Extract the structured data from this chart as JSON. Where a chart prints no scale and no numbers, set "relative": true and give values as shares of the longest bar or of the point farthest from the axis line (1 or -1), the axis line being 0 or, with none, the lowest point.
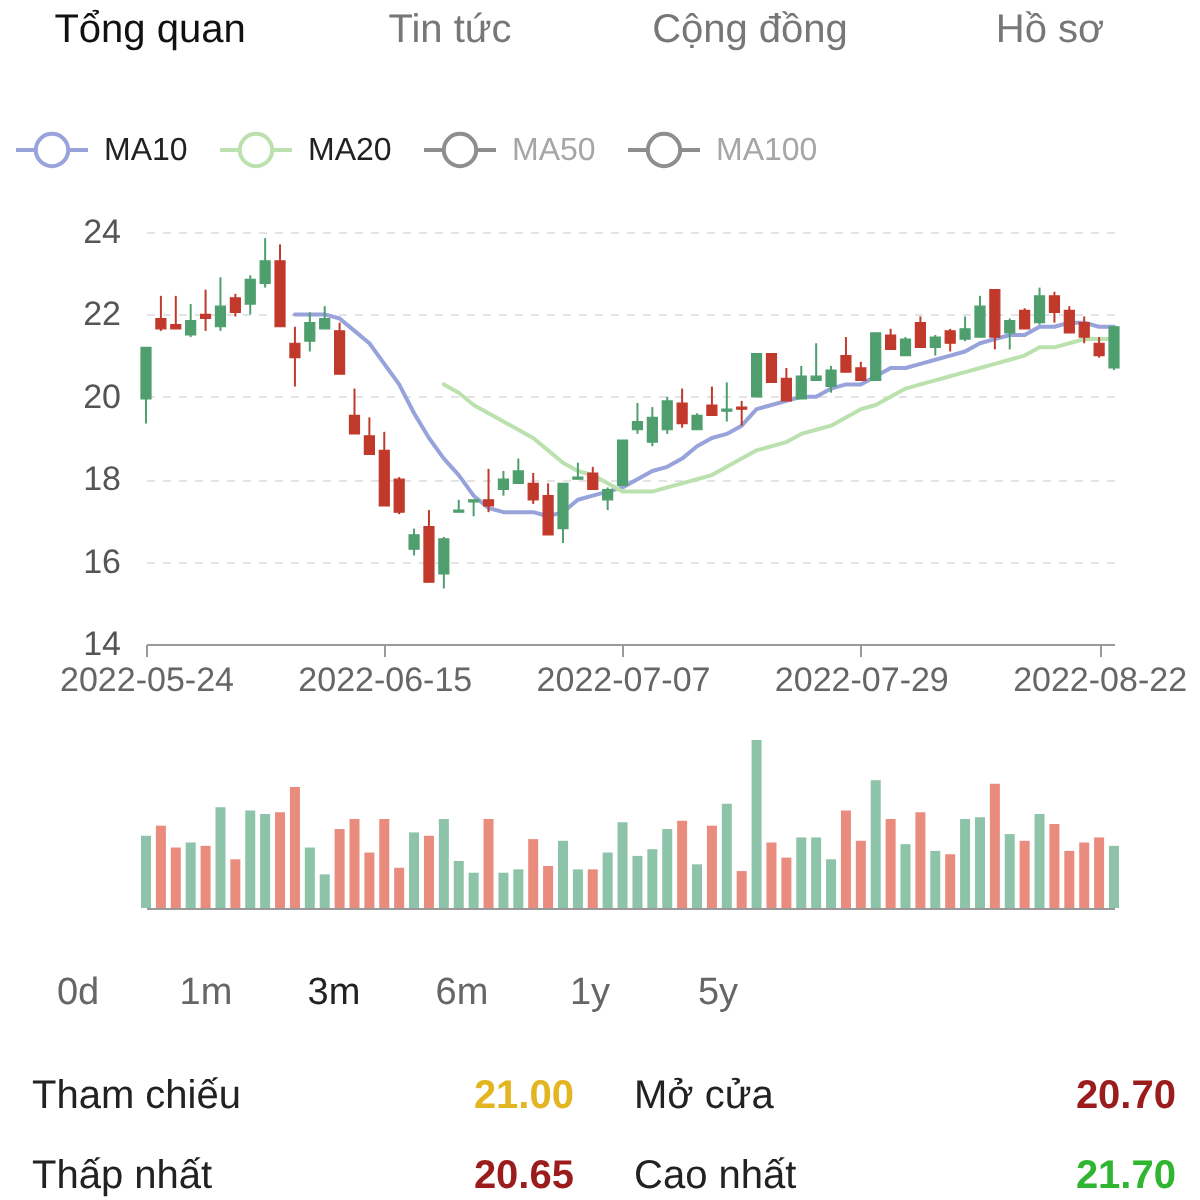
{
  "chart_data": [
    {
      "type": "other",
      "annotations": [
        "Tổng quan",
        "Tin tức",
        "Cộng đồng",
        "Hồ sơ"
      ],
      "colors": [
        "#111111",
        "#777777",
        "#777777",
        "#777777"
      ]
    },
    {
      "type": "candlestick",
      "categories": [
        "2022-05-24",
        null,
        null,
        null,
        null,
        null,
        null,
        null,
        null,
        null,
        null,
        null,
        null,
        null,
        null,
        null,
        "2022-06-15",
        null,
        null,
        null,
        null,
        null,
        null,
        null,
        null,
        null,
        null,
        null,
        null,
        null,
        null,
        null,
        "2022-07-07",
        null,
        null,
        null,
        null,
        null,
        null,
        null,
        null,
        null,
        null,
        null,
        null,
        null,
        null,
        null,
        "2022-07-29",
        null,
        null,
        null,
        null,
        null,
        null,
        null,
        null,
        null,
        null,
        null,
        null,
        null,
        null,
        null,
        "2022-08-22",
        null
      ],
      "ohlc": [
        [
          19.95,
          21.2,
          19.35,
          21.2
        ],
        [
          21.9,
          22.45,
          21.6,
          21.65
        ],
        [
          21.75,
          22.45,
          21.65,
          21.65
        ],
        [
          21.5,
          22.25,
          21.45,
          21.85
        ],
        [
          22.0,
          22.6,
          21.6,
          21.9
        ],
        [
          21.7,
          22.9,
          21.6,
          22.2
        ],
        [
          22.4,
          22.5,
          21.95,
          22.05
        ],
        [
          22.25,
          22.95,
          22.0,
          22.85
        ],
        [
          22.75,
          23.85,
          22.65,
          23.3
        ],
        [
          23.3,
          23.7,
          21.7,
          21.7
        ],
        [
          21.3,
          21.7,
          20.25,
          20.95
        ],
        [
          21.35,
          22.05,
          21.1,
          21.8
        ],
        [
          21.65,
          22.2,
          21.65,
          21.9
        ],
        [
          21.6,
          21.8,
          20.55,
          20.55
        ],
        [
          19.55,
          20.2,
          19.1,
          19.1
        ],
        [
          19.05,
          19.5,
          18.6,
          18.6
        ],
        [
          18.7,
          19.15,
          17.35,
          17.35
        ],
        [
          18.0,
          18.05,
          17.15,
          17.2
        ],
        [
          16.3,
          16.8,
          16.15,
          16.65
        ],
        [
          16.85,
          17.25,
          15.5,
          15.5
        ],
        [
          15.7,
          16.6,
          15.35,
          16.55
        ],
        [
          17.2,
          17.5,
          17.2,
          17.25
        ],
        [
          17.45,
          17.5,
          17.1,
          17.5
        ],
        [
          17.5,
          18.25,
          17.2,
          17.35
        ],
        [
          17.75,
          18.2,
          17.6,
          18.0
        ],
        [
          17.9,
          18.5,
          17.9,
          18.2
        ],
        [
          17.9,
          18.15,
          17.4,
          17.5
        ],
        [
          17.6,
          17.9,
          16.65,
          16.65
        ],
        [
          16.8,
          17.9,
          16.45,
          17.9
        ],
        [
          18.0,
          18.4,
          18.0,
          18.05
        ],
        [
          18.15,
          18.3,
          17.75,
          17.75
        ],
        [
          17.5,
          17.8,
          17.25,
          17.75
        ],
        [
          17.85,
          18.95,
          17.85,
          18.95
        ],
        [
          19.2,
          19.85,
          19.1,
          19.4
        ],
        [
          18.9,
          19.75,
          18.8,
          19.5
        ],
        [
          19.2,
          20.0,
          19.1,
          19.9
        ],
        [
          19.85,
          20.2,
          19.25,
          19.35
        ],
        [
          19.2,
          19.6,
          19.2,
          19.55
        ],
        [
          19.8,
          20.25,
          19.55,
          19.55
        ],
        [
          19.65,
          20.35,
          19.4,
          19.7
        ],
        [
          19.75,
          19.9,
          19.3,
          19.7
        ],
        [
          20.0,
          21.05,
          20.0,
          21.05
        ],
        [
          21.05,
          21.05,
          20.35,
          20.35
        ],
        [
          20.45,
          20.7,
          19.9,
          19.9
        ],
        [
          19.95,
          20.75,
          19.95,
          20.5
        ],
        [
          20.4,
          21.3,
          20.4,
          20.5
        ],
        [
          20.25,
          20.75,
          20.1,
          20.65
        ],
        [
          21.0,
          21.45,
          20.6,
          20.6
        ],
        [
          20.7,
          20.85,
          20.4,
          20.4
        ],
        [
          20.4,
          21.55,
          20.4,
          21.55
        ],
        [
          21.5,
          21.65,
          21.15,
          21.15
        ],
        [
          21.0,
          21.45,
          21.0,
          21.4
        ],
        [
          21.8,
          21.95,
          21.2,
          21.2
        ],
        [
          21.2,
          21.5,
          21.0,
          21.45
        ],
        [
          21.6,
          21.65,
          21.1,
          21.3
        ],
        [
          21.4,
          21.95,
          21.35,
          21.65
        ],
        [
          21.45,
          22.45,
          21.45,
          22.2
        ],
        [
          22.6,
          22.6,
          21.15,
          21.45
        ],
        [
          21.55,
          21.9,
          21.15,
          21.85
        ],
        [
          22.1,
          22.15,
          21.65,
          21.65
        ],
        [
          21.8,
          22.65,
          21.75,
          22.45
        ],
        [
          22.45,
          22.55,
          21.8,
          22.05
        ],
        [
          22.1,
          22.2,
          21.55,
          21.55
        ],
        [
          21.8,
          21.95,
          21.3,
          21.45
        ],
        [
          21.3,
          21.45,
          20.95,
          21.0
        ],
        [
          20.7,
          21.7,
          20.65,
          21.7
        ]
      ],
      "colors": [
        "#4f9e6e",
        "#c0392b",
        "#c0392b",
        "#4f9e6e",
        "#c0392b",
        "#4f9e6e",
        "#c0392b",
        "#4f9e6e",
        "#4f9e6e",
        "#c0392b",
        "#c0392b",
        "#4f9e6e",
        "#4f9e6e",
        "#c0392b",
        "#c0392b",
        "#c0392b",
        "#c0392b",
        "#c0392b",
        "#4f9e6e",
        "#c0392b",
        "#4f9e6e",
        "#4f9e6e",
        "#4f9e6e",
        "#c0392b",
        "#4f9e6e",
        "#4f9e6e",
        "#c0392b",
        "#c0392b",
        "#4f9e6e",
        "#4f9e6e",
        "#c0392b",
        "#4f9e6e",
        "#4f9e6e",
        "#4f9e6e",
        "#4f9e6e",
        "#4f9e6e",
        "#c0392b",
        "#4f9e6e",
        "#c0392b",
        "#4f9e6e",
        "#c0392b",
        "#4f9e6e",
        "#c0392b",
        "#c0392b",
        "#4f9e6e",
        "#4f9e6e",
        "#4f9e6e",
        "#c0392b",
        "#c0392b",
        "#4f9e6e",
        "#c0392b",
        "#4f9e6e",
        "#c0392b",
        "#4f9e6e",
        "#c0392b",
        "#4f9e6e",
        "#4f9e6e",
        "#c0392b",
        "#4f9e6e",
        "#c0392b",
        "#4f9e6e",
        "#c0392b",
        "#c0392b",
        "#c0392b",
        "#c0392b",
        "#4f9e6e"
      ],
      "series": [
        {
          "name": "MA10",
          "type": "line",
          "color": "#97a3da",
          "values": [
            null,
            null,
            null,
            null,
            null,
            null,
            null,
            null,
            null,
            null,
            22.0,
            22.0,
            22.0,
            21.9,
            21.6,
            21.3,
            20.8,
            20.3,
            19.6,
            19.0,
            18.5,
            18.1,
            17.6,
            17.3,
            17.2,
            17.2,
            17.2,
            17.1,
            17.2,
            17.5,
            17.6,
            17.7,
            17.8,
            18.0,
            18.2,
            18.3,
            18.5,
            18.8,
            19.0,
            19.1,
            19.3,
            19.7,
            19.8,
            19.9,
            20.0,
            20.0,
            20.2,
            20.3,
            20.3,
            20.5,
            20.7,
            20.7,
            20.8,
            20.9,
            21.0,
            21.1,
            21.3,
            21.4,
            21.5,
            21.5,
            21.7,
            21.7,
            21.8,
            21.8,
            21.7,
            21.7
          ]
        },
        {
          "name": "MA20",
          "type": "line",
          "color": "#bbe2ae",
          "values": [
            null,
            null,
            null,
            null,
            null,
            null,
            null,
            null,
            null,
            null,
            null,
            null,
            null,
            null,
            null,
            null,
            null,
            null,
            null,
            null,
            20.3,
            20.1,
            19.8,
            19.6,
            19.4,
            19.2,
            19.0,
            18.7,
            18.4,
            18.2,
            18.1,
            17.9,
            17.7,
            17.7,
            17.7,
            17.8,
            17.9,
            18.0,
            18.1,
            18.3,
            18.5,
            18.7,
            18.8,
            18.9,
            19.1,
            19.2,
            19.3,
            19.5,
            19.7,
            19.8,
            20.0,
            20.2,
            20.3,
            20.4,
            20.5,
            20.6,
            20.7,
            20.8,
            20.9,
            21.0,
            21.2,
            21.2,
            21.3,
            21.4,
            21.4,
            21.4
          ]
        },
        {
          "name": "MA50",
          "type": "line",
          "color": "#8e8e8e",
          "values": [
            null,
            null,
            null,
            null,
            null,
            null,
            null,
            null,
            null,
            null,
            null,
            null,
            null,
            null,
            null,
            null,
            null,
            null,
            null,
            null,
            null,
            null,
            null,
            null,
            null,
            null,
            null,
            null,
            null,
            null,
            null,
            null,
            null,
            null,
            null,
            null,
            null,
            null,
            null,
            null,
            null,
            null,
            null,
            null,
            null,
            null,
            null,
            null,
            null,
            null,
            null,
            null,
            null,
            null,
            null,
            null,
            null,
            null,
            null,
            null,
            null,
            null,
            null,
            null,
            null,
            null
          ]
        },
        {
          "name": "MA100",
          "type": "line",
          "color": "#8e8e8e",
          "values": [
            null,
            null,
            null,
            null,
            null,
            null,
            null,
            null,
            null,
            null,
            null,
            null,
            null,
            null,
            null,
            null,
            null,
            null,
            null,
            null,
            null,
            null,
            null,
            null,
            null,
            null,
            null,
            null,
            null,
            null,
            null,
            null,
            null,
            null,
            null,
            null,
            null,
            null,
            null,
            null,
            null,
            null,
            null,
            null,
            null,
            null,
            null,
            null,
            null,
            null,
            null,
            null,
            null,
            null,
            null,
            null,
            null,
            null,
            null,
            null,
            null,
            null,
            null,
            null,
            null,
            null
          ]
        }
      ],
      "ylim": [
        14,
        24
      ],
      "yticks": [
        14,
        16,
        18,
        20,
        22,
        24
      ],
      "grid": "y",
      "legend": "top left",
      "line_style": "solid"
    },
    {
      "type": "bar",
      "relative": true,
      "categories": [
        null,
        null,
        null,
        null,
        null,
        null,
        null,
        null,
        null,
        null,
        null,
        null,
        null,
        null,
        null,
        null,
        null,
        null,
        null,
        null,
        null,
        null,
        null,
        null,
        null,
        null,
        null,
        null,
        null,
        null,
        null,
        null,
        null,
        null,
        null,
        null,
        null,
        null,
        null,
        null,
        null,
        null,
        null,
        null,
        null,
        null,
        null,
        null,
        null,
        null,
        null,
        null,
        null,
        null,
        null,
        null,
        null,
        null,
        null,
        null,
        null,
        null,
        null,
        null,
        null,
        null
      ],
      "values": [
        0.43,
        0.49,
        0.36,
        0.39,
        0.37,
        0.6,
        0.29,
        0.58,
        0.56,
        0.57,
        0.72,
        0.36,
        0.2,
        0.47,
        0.53,
        0.33,
        0.53,
        0.24,
        0.45,
        0.43,
        0.53,
        0.28,
        0.21,
        0.53,
        0.21,
        0.23,
        0.41,
        0.25,
        0.4,
        0.23,
        0.23,
        0.33,
        0.51,
        0.31,
        0.35,
        0.47,
        0.52,
        0.26,
        0.49,
        0.62,
        0.22,
        1.0,
        0.39,
        0.3,
        0.42,
        0.42,
        0.29,
        0.58,
        0.4,
        0.76,
        0.53,
        0.38,
        0.57,
        0.34,
        0.32,
        0.53,
        0.54,
        0.74,
        0.44,
        0.4,
        0.56,
        0.5,
        0.34,
        0.39,
        0.42,
        0.37
      ],
      "colors": [
        "#8dc3a8",
        "#e98b7d",
        "#e98b7d",
        "#8dc3a8",
        "#e98b7d",
        "#8dc3a8",
        "#e98b7d",
        "#8dc3a8",
        "#8dc3a8",
        "#e98b7d",
        "#e98b7d",
        "#8dc3a8",
        "#8dc3a8",
        "#e98b7d",
        "#e98b7d",
        "#e98b7d",
        "#e98b7d",
        "#e98b7d",
        "#8dc3a8",
        "#e98b7d",
        "#8dc3a8",
        "#8dc3a8",
        "#8dc3a8",
        "#e98b7d",
        "#8dc3a8",
        "#8dc3a8",
        "#e98b7d",
        "#e98b7d",
        "#8dc3a8",
        "#8dc3a8",
        "#e98b7d",
        "#8dc3a8",
        "#8dc3a8",
        "#8dc3a8",
        "#8dc3a8",
        "#8dc3a8",
        "#e98b7d",
        "#8dc3a8",
        "#e98b7d",
        "#8dc3a8",
        "#e98b7d",
        "#8dc3a8",
        "#e98b7d",
        "#e98b7d",
        "#8dc3a8",
        "#8dc3a8",
        "#8dc3a8",
        "#e98b7d",
        "#e98b7d",
        "#8dc3a8",
        "#e98b7d",
        "#8dc3a8",
        "#e98b7d",
        "#8dc3a8",
        "#e98b7d",
        "#8dc3a8",
        "#8dc3a8",
        "#e98b7d",
        "#8dc3a8",
        "#e98b7d",
        "#8dc3a8",
        "#e98b7d",
        "#e98b7d",
        "#e98b7d",
        "#e98b7d",
        "#8dc3a8"
      ]
    },
    {
      "type": "other",
      "annotations": [
        "0d",
        "1m",
        "3m",
        "6m",
        "1y",
        "5y"
      ],
      "colors": [
        "#666666",
        "#666666",
        "#222222",
        "#666666",
        "#666666",
        "#666666"
      ]
    },
    {
      "type": "other",
      "annotations": [
        "Tham chiếu",
        "21.00",
        "Mở cửa",
        "20.70",
        "Thấp nhất",
        "20.65",
        "Cao nhất",
        "21.70"
      ],
      "colors": [
        "#222222",
        "#e3b520",
        "#222222",
        "#9b1c1c",
        "#222222",
        "#9b1c1c",
        "#222222",
        "#2fb52f"
      ]
    }
  ]
}
